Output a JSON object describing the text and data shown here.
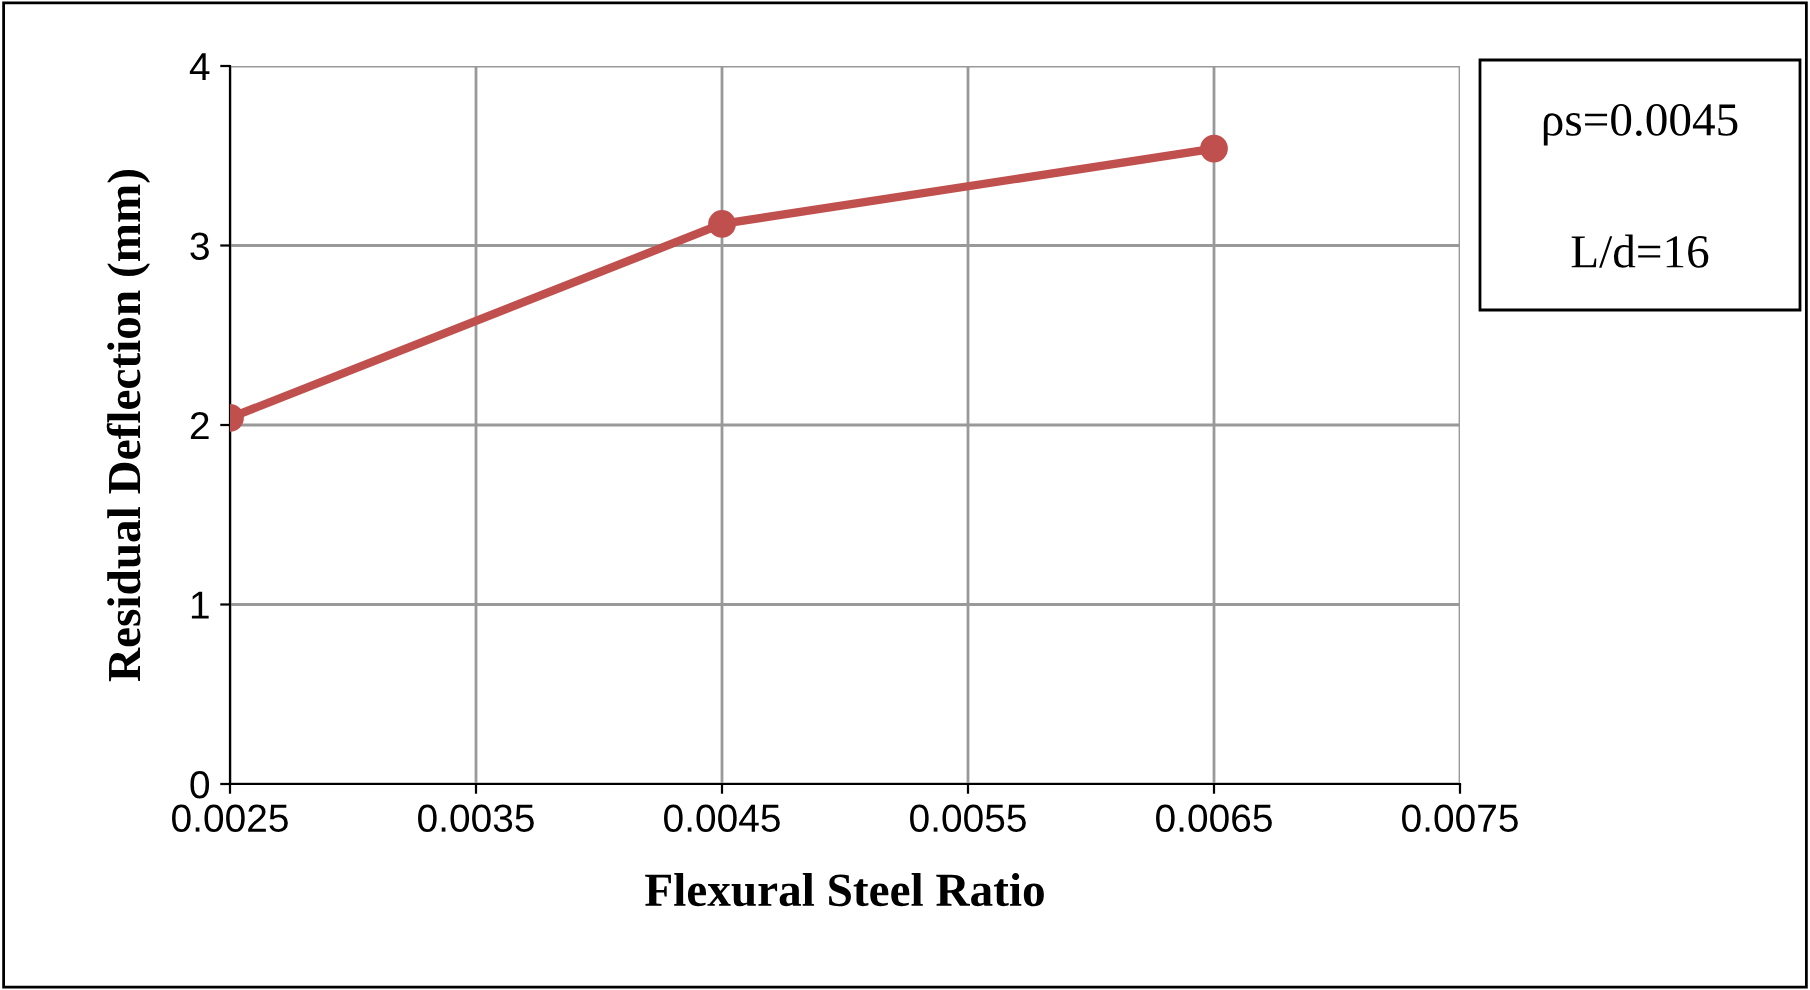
{
  "chart_data": {
    "type": "line",
    "xlabel": "Flexural Steel Ratio",
    "ylabel": "Residual Deflection (mm)",
    "x": [
      0.0025,
      0.0045,
      0.0065
    ],
    "series": [
      {
        "color": "#c0504d",
        "values": [
          2.04,
          3.12,
          3.54
        ]
      }
    ],
    "xlim": [
      0.0025,
      0.0075
    ],
    "xticks": [
      {
        "value": 0.0025,
        "label": "0.0025"
      },
      {
        "value": 0.0035,
        "label": "0.0035"
      },
      {
        "value": 0.0045,
        "label": "0.0045"
      },
      {
        "value": 0.0055,
        "label": "0.0055"
      },
      {
        "value": 0.0065,
        "label": "0.0065"
      },
      {
        "value": 0.0075,
        "label": "0.0075"
      }
    ],
    "ylim": [
      0,
      4
    ],
    "yticks": [
      0,
      1,
      2,
      3,
      4
    ],
    "grid": true,
    "marker": "circle",
    "line_style": "solid",
    "annotations": [
      "ρs=0.0045",
      "L/d=16"
    ]
  }
}
